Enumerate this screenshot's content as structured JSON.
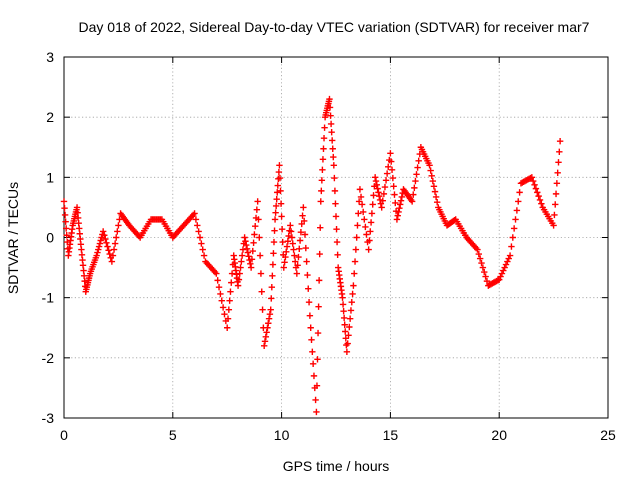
{
  "chart_data": {
    "type": "scatter",
    "title": "Day 018 of 2022, Sidereal Day-to-day VTEC variation (SDTVAR) for receiver mar7",
    "xlabel": "GPS time / hours",
    "ylabel": "SDTVAR / TECUs",
    "xlim": [
      0,
      25
    ],
    "ylim": [
      -3,
      3
    ],
    "x_ticks": [
      0,
      5,
      10,
      15,
      20,
      25
    ],
    "y_ticks": [
      -3,
      -2,
      -1,
      0,
      1,
      2,
      3
    ],
    "grid": true,
    "marker": "+",
    "color": "#ff0000",
    "series": [
      {
        "name": "SDTVAR",
        "x": [
          0.0,
          0.2,
          0.4,
          0.6,
          0.8,
          1.0,
          1.2,
          1.5,
          1.8,
          2.2,
          2.6,
          3.0,
          3.5,
          4.0,
          4.5,
          5.0,
          5.5,
          6.0,
          6.5,
          7.0,
          7.5,
          7.8,
          8.0,
          8.3,
          8.6,
          8.9,
          9.2,
          9.5,
          9.7,
          9.9,
          10.1,
          10.4,
          10.7,
          11.0,
          11.3,
          11.6,
          11.8,
          12.0,
          12.2,
          12.4,
          12.6,
          12.8,
          13.0,
          13.3,
          13.6,
          14.0,
          14.3,
          14.6,
          15.0,
          15.3,
          15.6,
          16.0,
          16.4,
          16.8,
          17.2,
          17.6,
          18.0,
          18.5,
          19.0,
          19.5,
          20.0,
          20.5,
          21.0,
          21.5,
          22.0,
          22.5,
          22.8
        ],
        "y": [
          0.6,
          -0.3,
          0.2,
          0.5,
          -0.2,
          -0.9,
          -0.6,
          -0.3,
          0.1,
          -0.4,
          0.4,
          0.2,
          0.0,
          0.3,
          0.3,
          0.0,
          0.2,
          0.4,
          -0.4,
          -0.6,
          -1.5,
          -0.3,
          -0.8,
          0.0,
          -0.5,
          0.6,
          -1.8,
          -1.2,
          0.3,
          1.2,
          -0.5,
          0.2,
          -0.6,
          0.5,
          -1.3,
          -2.9,
          0.6,
          2.0,
          2.3,
          1.2,
          -0.5,
          -1.0,
          -1.9,
          -0.8,
          0.8,
          -0.2,
          1.0,
          0.5,
          1.4,
          0.3,
          0.8,
          0.6,
          1.5,
          1.2,
          0.5,
          0.2,
          0.3,
          0.0,
          -0.2,
          -0.8,
          -0.7,
          -0.3,
          0.9,
          1.0,
          0.5,
          0.2,
          1.6
        ]
      }
    ]
  }
}
